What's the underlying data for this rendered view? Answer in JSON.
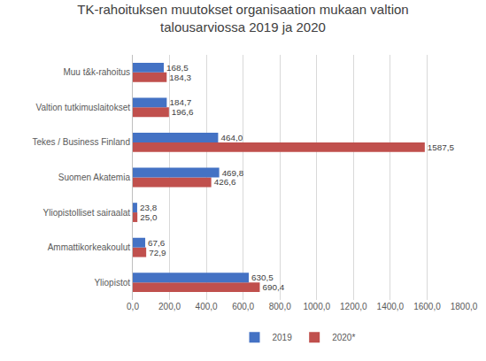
{
  "chart_data": {
    "type": "bar",
    "orientation": "horizontal",
    "title": "TK-rahoituksen muutokset organisaation mukaan valtion\ntalousarviossa 2019 ja 2020",
    "categories": [
      "Yliopistot",
      "Ammattikorkeakoulut",
      "Yliopistolliset sairaalat",
      "Suomen Akatemia",
      "Tekes / Business Finland",
      "Valtion tutkimuslaitokset",
      "Muu t&k-rahoitus"
    ],
    "series": [
      {
        "name": "2019",
        "color": "#4472c4",
        "values": [
          630.5,
          67.6,
          23.8,
          469.8,
          464.0,
          184.7,
          168.5
        ],
        "value_labels": [
          "630,5",
          "67,6",
          "23,8",
          "469,8",
          "464,0",
          "184,7",
          "168,5"
        ]
      },
      {
        "name": "2020*",
        "color": "#c0504d",
        "values": [
          690.4,
          72.9,
          25.0,
          426.6,
          1587.5,
          196.6,
          184.3
        ],
        "value_labels": [
          "690,4",
          "72,9",
          "25,0",
          "426,6",
          "1587,5",
          "196,6",
          "184,3"
        ]
      }
    ],
    "xlim": [
      0,
      1800
    ],
    "xticks": [
      {
        "value": 0,
        "label": "0,0"
      },
      {
        "value": 200,
        "label": "200,0"
      },
      {
        "value": 400,
        "label": "400,0"
      },
      {
        "value": 600,
        "label": "600,0"
      },
      {
        "value": 800,
        "label": "800,0"
      },
      {
        "value": 1000,
        "label": "1000,0"
      },
      {
        "value": 1200,
        "label": "1200,0"
      },
      {
        "value": 1400,
        "label": "1400,0"
      },
      {
        "value": 1600,
        "label": "1600,0"
      },
      {
        "value": 1800,
        "label": "1800,0"
      }
    ],
    "grid": true,
    "legend": "bottom",
    "data_labels": true
  }
}
